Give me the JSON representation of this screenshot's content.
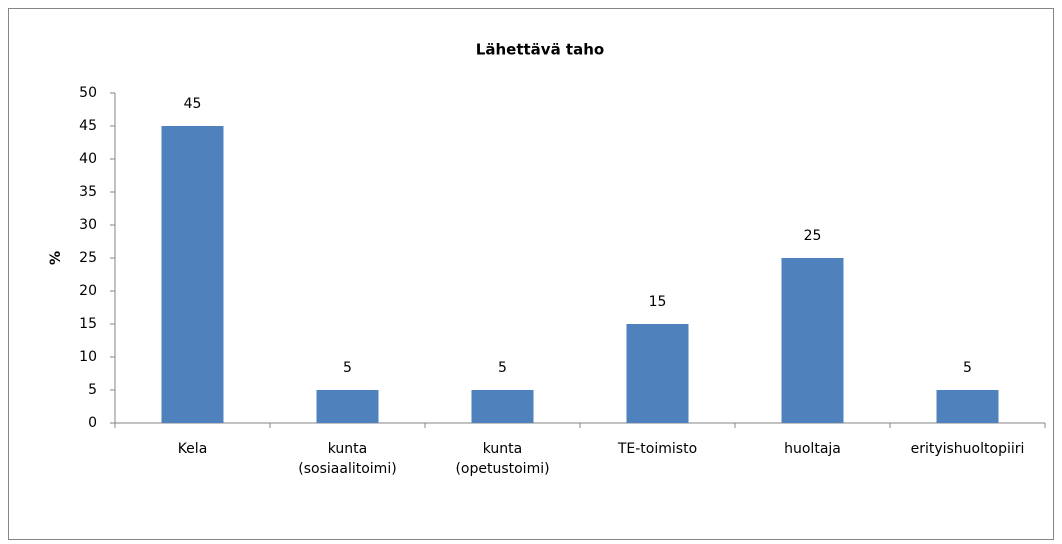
{
  "chart_data": {
    "type": "bar",
    "title": "Lähettävä taho",
    "y_label": "%",
    "categories": [
      "Kela",
      "kunta\n(sosiaalitoimi)",
      "kunta\n(opetustoimi)",
      "TE-toimisto",
      "huoltaja",
      "erityishuoltopiiri"
    ],
    "values": [
      45,
      5,
      5,
      15,
      25,
      5
    ],
    "color": "#4f81bd",
    "ylim": [
      0,
      50
    ],
    "yticks": [
      0,
      5,
      10,
      15,
      20,
      25,
      30,
      35,
      40,
      45,
      50
    ],
    "grid": false
  }
}
